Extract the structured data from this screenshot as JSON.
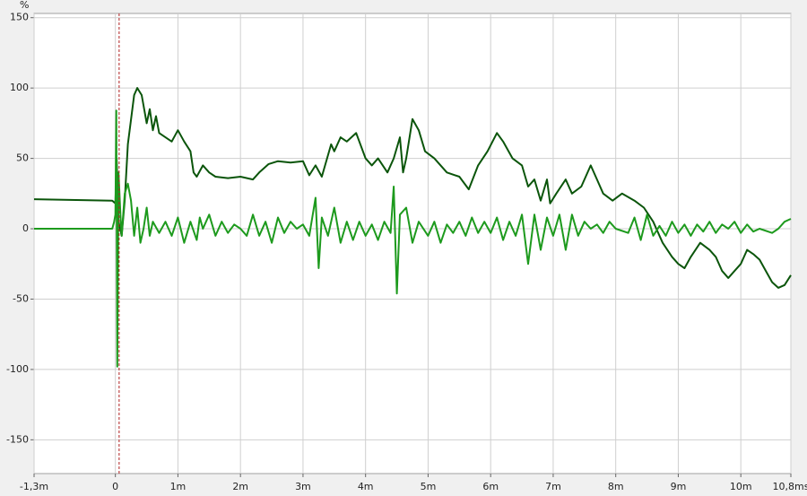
{
  "chart_data": {
    "type": "line",
    "y_label": "%",
    "xlim": [
      -1.3,
      10.8
    ],
    "ylim": [
      -174,
      153
    ],
    "xticks": [
      {
        "value": -1.3,
        "label": "-1,3m"
      },
      0,
      {
        "value": 1,
        "label": "1m"
      },
      {
        "value": 2,
        "label": "2m"
      },
      {
        "value": 3,
        "label": "3m"
      },
      {
        "value": 4,
        "label": "4m"
      },
      {
        "value": 5,
        "label": "5m"
      },
      {
        "value": 6,
        "label": "6m"
      },
      {
        "value": 7,
        "label": "7m"
      },
      {
        "value": 8,
        "label": "8m"
      },
      {
        "value": 9,
        "label": "9m"
      },
      {
        "value": 10,
        "label": "10m"
      },
      {
        "value": 10.8,
        "label": "10,8ms"
      }
    ],
    "yticks": [
      150,
      100,
      50,
      0,
      -50,
      -100,
      -150
    ],
    "grid": true,
    "cursor": {
      "x": 0.06,
      "color": "#b02020"
    },
    "series": [
      {
        "color": "#0b550b",
        "x": [
          -1.3,
          -0.05,
          0,
          0.02,
          0.05,
          0.1,
          0.15,
          0.2,
          0.3,
          0.35,
          0.42,
          0.5,
          0.55,
          0.6,
          0.65,
          0.7,
          0.8,
          0.9,
          1.0,
          1.1,
          1.2,
          1.25,
          1.3,
          1.4,
          1.5,
          1.6,
          1.8,
          2.0,
          2.2,
          2.3,
          2.45,
          2.6,
          2.8,
          3.0,
          3.1,
          3.2,
          3.3,
          3.45,
          3.5,
          3.6,
          3.7,
          3.85,
          4.0,
          4.1,
          4.2,
          4.35,
          4.45,
          4.55,
          4.6,
          4.65,
          4.75,
          4.85,
          4.95,
          5.1,
          5.3,
          5.5,
          5.65,
          5.8,
          5.95,
          6.1,
          6.2,
          6.35,
          6.5,
          6.6,
          6.7,
          6.8,
          6.9,
          6.95,
          7.05,
          7.2,
          7.3,
          7.45,
          7.6,
          7.7,
          7.8,
          7.95,
          8.1,
          8.3,
          8.45,
          8.6,
          8.75,
          8.9,
          9.0,
          9.1,
          9.2,
          9.35,
          9.5,
          9.6,
          9.7,
          9.8,
          9.9,
          10.0,
          10.1,
          10.2,
          10.3,
          10.4,
          10.5,
          10.6,
          10.7,
          10.8
        ],
        "values": [
          21,
          20,
          18,
          50,
          5,
          -5,
          20,
          60,
          95,
          100,
          95,
          75,
          85,
          70,
          80,
          68,
          65,
          62,
          70,
          62,
          55,
          40,
          37,
          45,
          40,
          37,
          36,
          37,
          35,
          40,
          46,
          48,
          47,
          48,
          38,
          45,
          37,
          60,
          55,
          65,
          62,
          68,
          50,
          45,
          50,
          40,
          50,
          65,
          40,
          50,
          78,
          70,
          55,
          50,
          40,
          37,
          28,
          45,
          55,
          68,
          62,
          50,
          45,
          30,
          35,
          20,
          35,
          18,
          25,
          35,
          25,
          30,
          45,
          35,
          25,
          20,
          25,
          20,
          15,
          5,
          -10,
          -20,
          -25,
          -28,
          -20,
          -10,
          -15,
          -20,
          -30,
          -35,
          -30,
          -25,
          -15,
          -18,
          -22,
          -30,
          -38,
          -42,
          -40,
          -33
        ]
      },
      {
        "color": "#1d9a1d",
        "x": [
          -1.3,
          -0.05,
          -0.02,
          0.0,
          0.015,
          0.03,
          0.05,
          0.08,
          0.1,
          0.15,
          0.2,
          0.25,
          0.3,
          0.35,
          0.4,
          0.45,
          0.5,
          0.55,
          0.6,
          0.7,
          0.8,
          0.9,
          1.0,
          1.1,
          1.2,
          1.3,
          1.35,
          1.4,
          1.5,
          1.6,
          1.7,
          1.8,
          1.9,
          2.0,
          2.1,
          2.2,
          2.3,
          2.4,
          2.5,
          2.6,
          2.7,
          2.8,
          2.9,
          3.0,
          3.1,
          3.2,
          3.25,
          3.3,
          3.4,
          3.5,
          3.6,
          3.7,
          3.8,
          3.9,
          4.0,
          4.1,
          4.2,
          4.3,
          4.4,
          4.45,
          4.5,
          4.55,
          4.65,
          4.75,
          4.85,
          5.0,
          5.1,
          5.2,
          5.3,
          5.4,
          5.5,
          5.6,
          5.7,
          5.8,
          5.9,
          6.0,
          6.1,
          6.2,
          6.3,
          6.4,
          6.5,
          6.6,
          6.7,
          6.8,
          6.9,
          7.0,
          7.1,
          7.2,
          7.3,
          7.4,
          7.5,
          7.6,
          7.7,
          7.8,
          7.9,
          8.0,
          8.2,
          8.3,
          8.4,
          8.5,
          8.6,
          8.7,
          8.8,
          8.9,
          9.0,
          9.1,
          9.2,
          9.3,
          9.4,
          9.5,
          9.6,
          9.7,
          9.8,
          9.9,
          10.0,
          10.1,
          10.2,
          10.3,
          10.5,
          10.6,
          10.7,
          10.8
        ],
        "values": [
          0,
          0,
          5,
          10,
          84,
          -98,
          40,
          10,
          -5,
          25,
          32,
          20,
          -5,
          15,
          -10,
          0,
          15,
          -5,
          5,
          -3,
          5,
          -5,
          8,
          -10,
          5,
          -8,
          8,
          0,
          10,
          -5,
          5,
          -3,
          3,
          0,
          -5,
          10,
          -5,
          5,
          -10,
          8,
          -3,
          5,
          0,
          3,
          -5,
          22,
          -28,
          8,
          -5,
          15,
          -10,
          5,
          -8,
          5,
          -5,
          3,
          -8,
          5,
          -3,
          30,
          -46,
          10,
          15,
          -10,
          5,
          -5,
          5,
          -10,
          3,
          -3,
          5,
          -5,
          8,
          -3,
          5,
          -3,
          8,
          -8,
          5,
          -5,
          10,
          -25,
          10,
          -15,
          8,
          -5,
          10,
          -15,
          10,
          -5,
          5,
          0,
          3,
          -3,
          5,
          0,
          -3,
          8,
          -8,
          10,
          -5,
          2,
          -5,
          5,
          -3,
          3,
          -5,
          3,
          -2,
          5,
          -3,
          3,
          0,
          5,
          -3,
          3,
          -2,
          0,
          -3,
          0,
          5,
          7
        ]
      }
    ]
  }
}
